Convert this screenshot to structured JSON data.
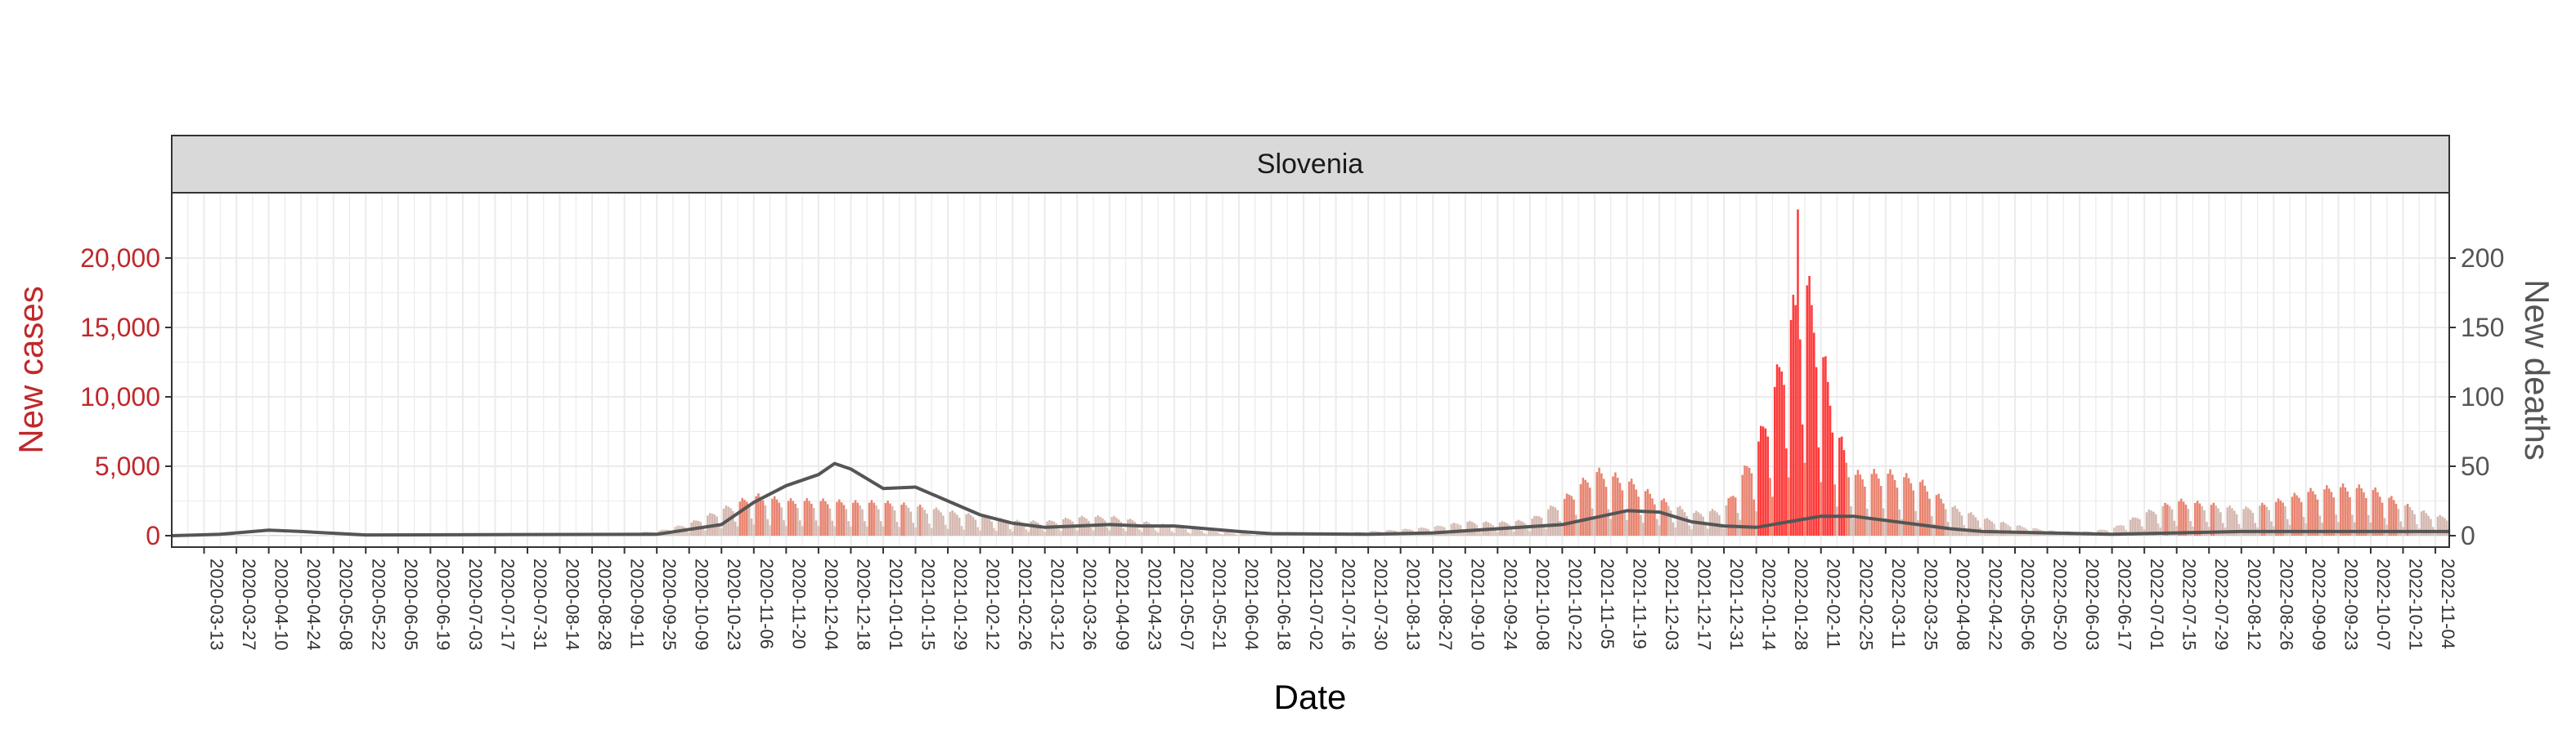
{
  "chart_data": {
    "type": "bar+line",
    "facet": "Slovenia",
    "xlabel": "Date",
    "ylabel_left": "New cases",
    "ylabel_right": "New deaths",
    "ylim_left": [
      0,
      24000
    ],
    "yticks_left": [
      0,
      5000,
      10000,
      15000,
      20000
    ],
    "yticks_left_labels": [
      "0",
      "5,000",
      "10,000",
      "15,000",
      "20,000"
    ],
    "ylim_right": [
      0,
      240
    ],
    "yticks_right": [
      0,
      50,
      100,
      150,
      200
    ],
    "yticks_right_labels": [
      "0",
      "50",
      "100",
      "150",
      "200"
    ],
    "x_start": "2020-02-28",
    "x_end": "2022-11-10",
    "x_tick_labels": [
      "2020-03-13",
      "2020-03-27",
      "2020-04-10",
      "2020-04-24",
      "2020-05-08",
      "2020-05-22",
      "2020-06-05",
      "2020-06-19",
      "2020-07-03",
      "2020-07-17",
      "2020-07-31",
      "2020-08-14",
      "2020-08-28",
      "2020-09-11",
      "2020-09-25",
      "2020-10-09",
      "2020-10-23",
      "2020-11-06",
      "2020-11-20",
      "2020-12-04",
      "2020-12-18",
      "2021-01-01",
      "2021-01-15",
      "2021-01-29",
      "2021-02-12",
      "2021-02-26",
      "2021-03-12",
      "2021-03-26",
      "2021-04-09",
      "2021-04-23",
      "2021-05-07",
      "2021-05-21",
      "2021-06-04",
      "2021-06-18",
      "2021-07-02",
      "2021-07-16",
      "2021-07-30",
      "2021-08-13",
      "2021-08-27",
      "2021-09-10",
      "2021-09-24",
      "2021-10-08",
      "2021-10-22",
      "2021-11-05",
      "2021-11-19",
      "2021-12-03",
      "2021-12-17",
      "2021-12-31",
      "2022-01-14",
      "2022-01-28",
      "2022-02-11",
      "2022-02-25",
      "2022-03-11",
      "2022-03-25",
      "2022-04-08",
      "2022-04-22",
      "2022-05-06",
      "2022-05-20",
      "2022-06-03",
      "2022-06-17",
      "2022-07-01",
      "2022-07-15",
      "2022-07-29",
      "2022-08-12",
      "2022-08-26",
      "2022-09-09",
      "2022-09-23",
      "2022-10-07",
      "2022-10-21",
      "2022-11-04"
    ],
    "cases_series": {
      "name": "New cases",
      "approx_daily_by_period_start": [
        {
          "date": "2020-02-28",
          "value": 0
        },
        {
          "date": "2020-03-13",
          "value": 40
        },
        {
          "date": "2020-04-10",
          "value": 30
        },
        {
          "date": "2020-05-08",
          "value": 5
        },
        {
          "date": "2020-06-19",
          "value": 10
        },
        {
          "date": "2020-07-17",
          "value": 20
        },
        {
          "date": "2020-08-28",
          "value": 40
        },
        {
          "date": "2020-09-25",
          "value": 250
        },
        {
          "date": "2020-10-09",
          "value": 700
        },
        {
          "date": "2020-10-23",
          "value": 1500
        },
        {
          "date": "2020-11-06",
          "value": 2300
        },
        {
          "date": "2020-11-20",
          "value": 2000
        },
        {
          "date": "2020-12-04",
          "value": 2000
        },
        {
          "date": "2020-12-18",
          "value": 1900
        },
        {
          "date": "2021-01-01",
          "value": 1900
        },
        {
          "date": "2021-01-15",
          "value": 1700
        },
        {
          "date": "2021-01-29",
          "value": 1400
        },
        {
          "date": "2021-02-12",
          "value": 1100
        },
        {
          "date": "2021-02-26",
          "value": 850
        },
        {
          "date": "2021-03-12",
          "value": 800
        },
        {
          "date": "2021-03-26",
          "value": 1050
        },
        {
          "date": "2021-04-09",
          "value": 1100
        },
        {
          "date": "2021-04-23",
          "value": 800
        },
        {
          "date": "2021-05-07",
          "value": 550
        },
        {
          "date": "2021-05-21",
          "value": 300
        },
        {
          "date": "2021-06-04",
          "value": 120
        },
        {
          "date": "2021-06-18",
          "value": 60
        },
        {
          "date": "2021-07-02",
          "value": 50
        },
        {
          "date": "2021-07-16",
          "value": 120
        },
        {
          "date": "2021-07-30",
          "value": 250
        },
        {
          "date": "2021-08-13",
          "value": 350
        },
        {
          "date": "2021-08-27",
          "value": 500
        },
        {
          "date": "2021-09-10",
          "value": 800
        },
        {
          "date": "2021-09-24",
          "value": 750
        },
        {
          "date": "2021-10-08",
          "value": 900
        },
        {
          "date": "2021-10-22",
          "value": 2000
        },
        {
          "date": "2021-11-05",
          "value": 3700
        },
        {
          "date": "2021-11-19",
          "value": 3200
        },
        {
          "date": "2021-12-03",
          "value": 2100
        },
        {
          "date": "2021-12-17",
          "value": 1300
        },
        {
          "date": "2021-12-31",
          "value": 1500
        },
        {
          "date": "2022-01-14",
          "value": 5000
        },
        {
          "date": "2022-01-21",
          "value": 8000
        },
        {
          "date": "2022-01-28",
          "value": 12000
        },
        {
          "date": "2022-02-04",
          "value": 15000
        },
        {
          "date": "2022-02-11",
          "value": 11000
        },
        {
          "date": "2022-02-18",
          "value": 6000
        },
        {
          "date": "2022-02-25",
          "value": 3500
        },
        {
          "date": "2022-03-11",
          "value": 3600
        },
        {
          "date": "2022-03-25",
          "value": 3200
        },
        {
          "date": "2022-04-08",
          "value": 1700
        },
        {
          "date": "2022-04-22",
          "value": 1000
        },
        {
          "date": "2022-05-06",
          "value": 600
        },
        {
          "date": "2022-05-20",
          "value": 300
        },
        {
          "date": "2022-06-03",
          "value": 200
        },
        {
          "date": "2022-06-17",
          "value": 400
        },
        {
          "date": "2022-07-01",
          "value": 1300
        },
        {
          "date": "2022-07-15",
          "value": 2000
        },
        {
          "date": "2022-07-29",
          "value": 1800
        },
        {
          "date": "2022-08-12",
          "value": 1500
        },
        {
          "date": "2022-08-26",
          "value": 1900
        },
        {
          "date": "2022-09-09",
          "value": 2500
        },
        {
          "date": "2022-09-23",
          "value": 2800
        },
        {
          "date": "2022-10-07",
          "value": 2700
        },
        {
          "date": "2022-10-21",
          "value": 1800
        },
        {
          "date": "2022-11-04",
          "value": 1100
        }
      ],
      "peak": {
        "date": "2022-02-01",
        "value": 23500
      }
    },
    "deaths_series": {
      "name": "New deaths",
      "approx_7day_avg": [
        {
          "date": "2020-02-28",
          "value": 0
        },
        {
          "date": "2020-03-20",
          "value": 1
        },
        {
          "date": "2020-04-10",
          "value": 4
        },
        {
          "date": "2020-04-24",
          "value": 3
        },
        {
          "date": "2020-05-22",
          "value": 0.5
        },
        {
          "date": "2020-09-25",
          "value": 1
        },
        {
          "date": "2020-10-23",
          "value": 8
        },
        {
          "date": "2020-11-06",
          "value": 24
        },
        {
          "date": "2020-11-20",
          "value": 36
        },
        {
          "date": "2020-12-04",
          "value": 44
        },
        {
          "date": "2020-12-11",
          "value": 52
        },
        {
          "date": "2020-12-18",
          "value": 48
        },
        {
          "date": "2021-01-01",
          "value": 34
        },
        {
          "date": "2021-01-15",
          "value": 35
        },
        {
          "date": "2021-01-29",
          "value": 25
        },
        {
          "date": "2021-02-12",
          "value": 15
        },
        {
          "date": "2021-02-26",
          "value": 9
        },
        {
          "date": "2021-03-12",
          "value": 6
        },
        {
          "date": "2021-03-26",
          "value": 7
        },
        {
          "date": "2021-04-09",
          "value": 8
        },
        {
          "date": "2021-04-23",
          "value": 7
        },
        {
          "date": "2021-05-07",
          "value": 7
        },
        {
          "date": "2021-05-21",
          "value": 5
        },
        {
          "date": "2021-06-04",
          "value": 3
        },
        {
          "date": "2021-06-18",
          "value": 1.5
        },
        {
          "date": "2021-07-30",
          "value": 1
        },
        {
          "date": "2021-08-27",
          "value": 2
        },
        {
          "date": "2021-09-24",
          "value": 5
        },
        {
          "date": "2021-10-22",
          "value": 8
        },
        {
          "date": "2021-11-05",
          "value": 13
        },
        {
          "date": "2021-11-19",
          "value": 18
        },
        {
          "date": "2021-12-03",
          "value": 17
        },
        {
          "date": "2021-12-17",
          "value": 10
        },
        {
          "date": "2021-12-31",
          "value": 7
        },
        {
          "date": "2022-01-14",
          "value": 6
        },
        {
          "date": "2022-01-28",
          "value": 10
        },
        {
          "date": "2022-02-11",
          "value": 14
        },
        {
          "date": "2022-02-25",
          "value": 14
        },
        {
          "date": "2022-03-11",
          "value": 11
        },
        {
          "date": "2022-03-25",
          "value": 8
        },
        {
          "date": "2022-04-08",
          "value": 5
        },
        {
          "date": "2022-04-22",
          "value": 3
        },
        {
          "date": "2022-05-20",
          "value": 2
        },
        {
          "date": "2022-06-17",
          "value": 1
        },
        {
          "date": "2022-07-15",
          "value": 2
        },
        {
          "date": "2022-08-12",
          "value": 3
        },
        {
          "date": "2022-09-09",
          "value": 3
        },
        {
          "date": "2022-10-07",
          "value": 3
        },
        {
          "date": "2022-11-10",
          "value": 3
        }
      ]
    },
    "colors": {
      "bars_low": "#d4b8b0",
      "bars_mid": "#e88470",
      "bars_high": "#ff3a3a",
      "deaths_line": "#555555",
      "left_axis_text": "#c0282b",
      "right_axis_text": "#555555",
      "strip_fill": "#d9d9d9",
      "grid": "#ebebeb"
    },
    "grid": true,
    "legend": "none"
  }
}
